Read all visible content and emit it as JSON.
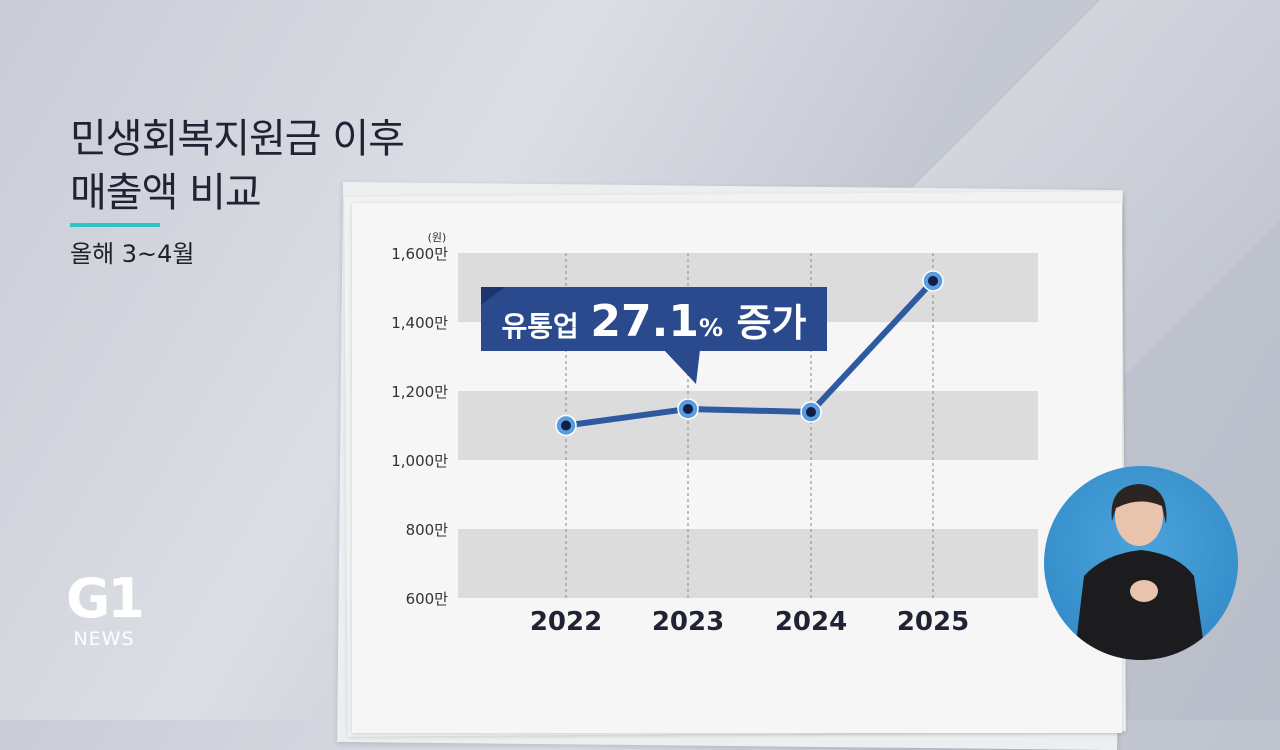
{
  "title_lines": [
    "민생회복지원금 이후",
    "매출액 비교"
  ],
  "subtitle": "올해 3~4월",
  "logo": {
    "mark": "G1",
    "text": "NEWS"
  },
  "colors": {
    "line": "#2d5aa0",
    "band": "#dcdcdc",
    "callout": "#2b4a8e",
    "accent": "#2ec4c0",
    "interpreter_bg": "#3b96d2"
  },
  "chart_data": {
    "type": "line",
    "title": "",
    "unit": "(원)",
    "categories": [
      "2022",
      "2023",
      "2024",
      "2025"
    ],
    "values": [
      11000000,
      11480000,
      11390000,
      15190000
    ],
    "ylim": [
      6000000,
      16000000
    ],
    "yticks": [
      6000000,
      8000000,
      10000000,
      12000000,
      14000000,
      16000000
    ],
    "ytick_labels": [
      "600만",
      "800만",
      "1,000만",
      "1,200만",
      "1,400만",
      "1,600만"
    ],
    "grid": "alternating horizontal bands, dashed vertical lines",
    "annotation": {
      "prefix": "유통업",
      "value": "27.1",
      "unit": "%",
      "suffix": "증가"
    }
  }
}
